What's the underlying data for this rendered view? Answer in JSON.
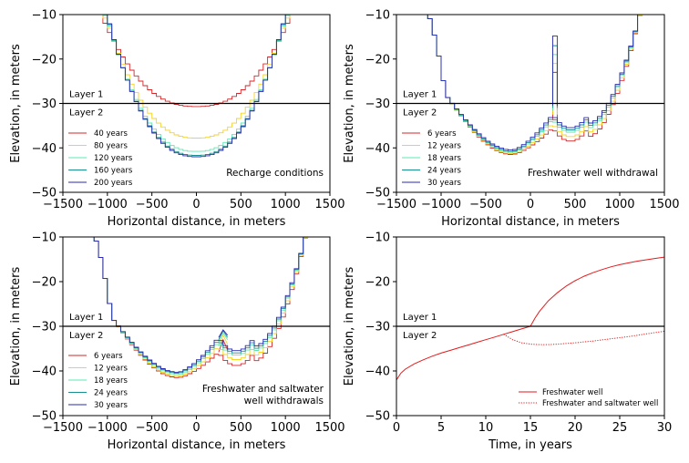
{
  "chart_data": [
    {
      "type": "line",
      "id": "a",
      "xlabel": "Horizontal distance, in meters",
      "ylabel": "Elevation, in meters",
      "xlim": [
        -1500,
        1500
      ],
      "ylim": [
        -50,
        -10
      ],
      "xticks": [
        -1500,
        -1000,
        -500,
        0,
        500,
        1000,
        1500
      ],
      "yticks": [
        -50,
        -40,
        -30,
        -20,
        -10
      ],
      "xtick_labels": [
        "−1500",
        "−1000",
        "−500",
        "0",
        "500",
        "1000",
        "1500"
      ],
      "ytick_labels": [
        "−50",
        "−40",
        "−30",
        "−20",
        "−10"
      ],
      "grid": false,
      "legend_position": "lower-left",
      "annotation": "Recharge conditions",
      "layer_line": -30,
      "layer_labels": [
        "Layer 1",
        "Layer 2"
      ],
      "curve_shape": "trough",
      "x_half_width": 1100,
      "series": [
        {
          "name": "40 years",
          "color": "#d62728",
          "bottom": -30.7,
          "edge": -13.0
        },
        {
          "name": "80 years",
          "color": "#f5d327",
          "bottom": -37.8,
          "edge": -11.5
        },
        {
          "name": "120 years",
          "color": "#5ee8b0",
          "bottom": -40.8,
          "edge": -10.8
        },
        {
          "name": "160 years",
          "color": "#1a8f8f",
          "bottom": -41.7,
          "edge": -10.4
        },
        {
          "name": "200 years",
          "color": "#2a2ab0",
          "bottom": -42.0,
          "edge": -10.2
        }
      ]
    },
    {
      "type": "line",
      "id": "b",
      "xlabel": "Horizontal distance, in meters",
      "ylabel": "Elevation, in meters",
      "xlim": [
        -1500,
        1500
      ],
      "ylim": [
        -50,
        -10
      ],
      "xticks": [
        -1500,
        -1000,
        -500,
        0,
        500,
        1000,
        1500
      ],
      "yticks": [
        -50,
        -40,
        -30,
        -20,
        -10
      ],
      "xtick_labels": [
        "−1500",
        "−1000",
        "−500",
        "0",
        "500",
        "1000",
        "1500"
      ],
      "ytick_labels": [
        "−50",
        "−40",
        "−30",
        "−20",
        "−10"
      ],
      "grid": false,
      "legend_position": "lower-left",
      "annotation": "Freshwater well withdrawal",
      "layer_line": -30,
      "layer_labels": [
        "Layer 1",
        "Layer 2"
      ],
      "curve_shape": "freshwater",
      "series": [
        {
          "name": " 6 years",
          "color": "#d62728",
          "bottom": -41.5,
          "local_min": -37.5,
          "spike": -23.0
        },
        {
          "name": "12 years",
          "color": "#f5d327",
          "bottom": -41.3,
          "local_min": -36.5,
          "spike": -21.0
        },
        {
          "name": "18 years",
          "color": "#5ee8b0",
          "bottom": -41.0,
          "local_min": -35.5,
          "spike": -19.0
        },
        {
          "name": "24 years",
          "color": "#1a8f8f",
          "bottom": -40.8,
          "local_min": -35.0,
          "spike": -17.0
        },
        {
          "name": "30 years",
          "color": "#2a2ab0",
          "bottom": -40.5,
          "local_min": -34.5,
          "spike": -14.8
        }
      ]
    },
    {
      "type": "line",
      "id": "c",
      "xlabel": "Horizontal distance, in meters",
      "ylabel": "Elevation, in meters",
      "xlim": [
        -1500,
        1500
      ],
      "ylim": [
        -50,
        -10
      ],
      "xticks": [
        -1500,
        -1000,
        -500,
        0,
        500,
        1000,
        1500
      ],
      "yticks": [
        -50,
        -40,
        -30,
        -20,
        -10
      ],
      "xtick_labels": [
        "−1500",
        "−1000",
        "−500",
        "0",
        "500",
        "1000",
        "1500"
      ],
      "ytick_labels": [
        "−50",
        "−40",
        "−30",
        "−20",
        "−10"
      ],
      "grid": false,
      "legend_position": "lower-left",
      "annotation": [
        "Freshwater and saltwater",
        "well withdrawals"
      ],
      "layer_line": -30,
      "layer_labels": [
        "Layer 1",
        "Layer 2"
      ],
      "curve_shape": "saltwater",
      "series": [
        {
          "name": " 6 years",
          "color": "#d62728",
          "bottom": -41.5,
          "local_min": -37.8,
          "peak": -33.0
        },
        {
          "name": "12 years",
          "color": "#f5d327",
          "bottom": -41.2,
          "local_min": -36.5,
          "peak": -32.0
        },
        {
          "name": "18 years",
          "color": "#5ee8b0",
          "bottom": -40.8,
          "local_min": -35.5,
          "peak": -31.5
        },
        {
          "name": "24 years",
          "color": "#1a8f8f",
          "bottom": -40.5,
          "local_min": -35.0,
          "peak": -31.0
        },
        {
          "name": "30 years",
          "color": "#2a2ab0",
          "bottom": -40.3,
          "local_min": -34.5,
          "peak": -30.8
        }
      ]
    },
    {
      "type": "line",
      "id": "d",
      "xlabel": "Time, in years",
      "ylabel": "Elevation, in meters",
      "xlim": [
        0,
        30
      ],
      "ylim": [
        -50,
        -10
      ],
      "xticks": [
        0,
        5,
        10,
        15,
        20,
        25,
        30
      ],
      "yticks": [
        -50,
        -40,
        -30,
        -20,
        -10
      ],
      "xtick_labels": [
        "0",
        "5",
        "10",
        "15",
        "20",
        "25",
        "30"
      ],
      "ytick_labels": [
        "−50",
        "−40",
        "−30",
        "−20",
        "−10"
      ],
      "grid": false,
      "legend_position": "lower-right",
      "layer_line": -30,
      "layer_labels": [
        "Layer 1",
        "Layer 2"
      ],
      "series": [
        {
          "name": "Freshwater well",
          "color": "#e31a1c",
          "style": "solid",
          "x": [
            0,
            0.5,
            1,
            2,
            3,
            4,
            5,
            6,
            7,
            8,
            9,
            10,
            11,
            12,
            13,
            14,
            15,
            15.5,
            16,
            17,
            18,
            19,
            20,
            21,
            22,
            23,
            24,
            25,
            26,
            27,
            28,
            29,
            30
          ],
          "y": [
            -42.0,
            -40.5,
            -39.6,
            -38.4,
            -37.5,
            -36.7,
            -36.0,
            -35.4,
            -34.8,
            -34.2,
            -33.6,
            -33.0,
            -32.4,
            -31.8,
            -31.2,
            -30.6,
            -30.0,
            -28.2,
            -26.7,
            -24.3,
            -22.5,
            -21.0,
            -19.8,
            -18.8,
            -18.0,
            -17.3,
            -16.7,
            -16.2,
            -15.8,
            -15.4,
            -15.1,
            -14.8,
            -14.5
          ]
        },
        {
          "name": "Freshwater and saltwater well",
          "color": "#e31a1c",
          "style": "dotted",
          "x": [
            12,
            13,
            14,
            15,
            16,
            17,
            18,
            20,
            22,
            24,
            26,
            28,
            30
          ],
          "y": [
            -31.8,
            -33.0,
            -33.7,
            -34.0,
            -34.1,
            -34.1,
            -34.0,
            -33.7,
            -33.3,
            -32.8,
            -32.3,
            -31.7,
            -31.1
          ]
        }
      ]
    }
  ]
}
